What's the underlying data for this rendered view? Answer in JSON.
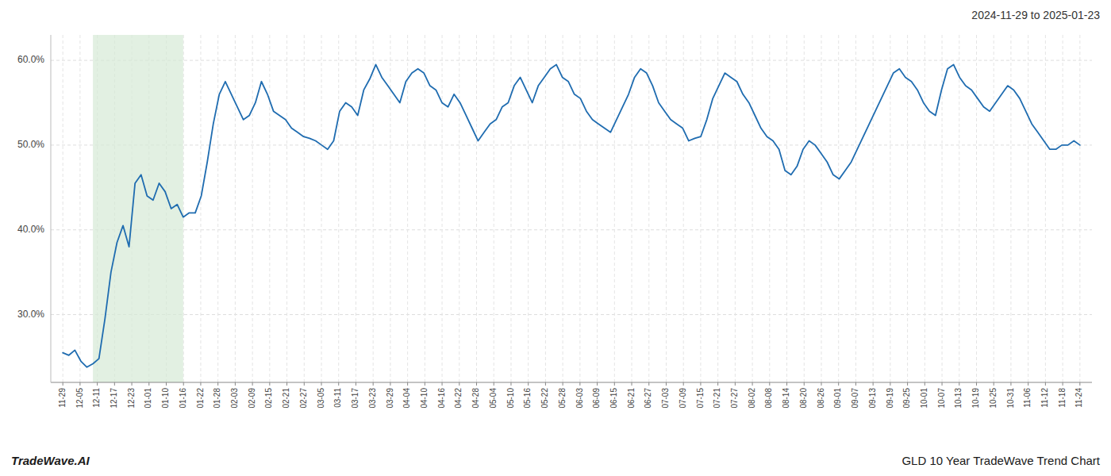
{
  "chart_data": {
    "type": "line",
    "title": "2024-11-29 to 2025-01-23",
    "annotations": [
      "TradeWave.AI",
      "GLD 10 Year TradeWave Trend Chart"
    ],
    "color": "#1f6cb0",
    "grid": true,
    "shaded_range": {
      "start": 5,
      "end": 20,
      "color": "#d6ead6"
    },
    "xlim": [
      -2,
      171
    ],
    "xticks": [
      {
        "value": 0,
        "label": "11-29"
      },
      {
        "value": 2.864,
        "label": "12-05"
      },
      {
        "value": 5.729,
        "label": "12-11"
      },
      {
        "value": 8.593,
        "label": "12-17"
      },
      {
        "value": 11.458,
        "label": "12-23"
      },
      {
        "value": 14.322,
        "label": "01-01"
      },
      {
        "value": 17.186,
        "label": "01-10"
      },
      {
        "value": 20.051,
        "label": "01-16"
      },
      {
        "value": 22.915,
        "label": "01-22"
      },
      {
        "value": 25.78,
        "label": "01-28"
      },
      {
        "value": 28.644,
        "label": "02-03"
      },
      {
        "value": 31.508,
        "label": "02-09"
      },
      {
        "value": 34.373,
        "label": "02-15"
      },
      {
        "value": 37.237,
        "label": "02-21"
      },
      {
        "value": 40.102,
        "label": "02-27"
      },
      {
        "value": 42.966,
        "label": "03-05"
      },
      {
        "value": 45.831,
        "label": "03-11"
      },
      {
        "value": 48.695,
        "label": "03-17"
      },
      {
        "value": 51.559,
        "label": "03-23"
      },
      {
        "value": 54.424,
        "label": "03-29"
      },
      {
        "value": 57.288,
        "label": "04-04"
      },
      {
        "value": 60.153,
        "label": "04-10"
      },
      {
        "value": 63.017,
        "label": "04-16"
      },
      {
        "value": 65.881,
        "label": "04-22"
      },
      {
        "value": 68.746,
        "label": "04-28"
      },
      {
        "value": 71.61,
        "label": "05-04"
      },
      {
        "value": 74.475,
        "label": "05-10"
      },
      {
        "value": 77.339,
        "label": "05-16"
      },
      {
        "value": 80.203,
        "label": "05-22"
      },
      {
        "value": 83.068,
        "label": "05-28"
      },
      {
        "value": 85.932,
        "label": "06-03"
      },
      {
        "value": 88.797,
        "label": "06-09"
      },
      {
        "value": 91.661,
        "label": "06-15"
      },
      {
        "value": 94.525,
        "label": "06-21"
      },
      {
        "value": 97.39,
        "label": "06-27"
      },
      {
        "value": 100.254,
        "label": "07-03"
      },
      {
        "value": 103.119,
        "label": "07-09"
      },
      {
        "value": 105.983,
        "label": "07-15"
      },
      {
        "value": 108.847,
        "label": "07-21"
      },
      {
        "value": 111.712,
        "label": "07-27"
      },
      {
        "value": 114.576,
        "label": "08-02"
      },
      {
        "value": 117.441,
        "label": "08-08"
      },
      {
        "value": 120.305,
        "label": "08-14"
      },
      {
        "value": 123.169,
        "label": "08-20"
      },
      {
        "value": 126.034,
        "label": "08-26"
      },
      {
        "value": 128.898,
        "label": "09-01"
      },
      {
        "value": 131.763,
        "label": "09-07"
      },
      {
        "value": 134.627,
        "label": "09-13"
      },
      {
        "value": 137.492,
        "label": "09-19"
      },
      {
        "value": 140.356,
        "label": "09-25"
      },
      {
        "value": 143.22,
        "label": "10-01"
      },
      {
        "value": 146.085,
        "label": "10-07"
      },
      {
        "value": 148.949,
        "label": "10-13"
      },
      {
        "value": 151.814,
        "label": "10-19"
      },
      {
        "value": 154.678,
        "label": "10-25"
      },
      {
        "value": 157.542,
        "label": "10-31"
      },
      {
        "value": 160.407,
        "label": "11-06"
      },
      {
        "value": 163.271,
        "label": "11-12"
      },
      {
        "value": 166.136,
        "label": "11-18"
      },
      {
        "value": 169,
        "label": "11-24"
      }
    ],
    "ylim": [
      22.0,
      63.0
    ],
    "yticks": [
      {
        "value": 30.0,
        "label": "30.0%"
      },
      {
        "value": 40.0,
        "label": "40.0%"
      },
      {
        "value": 50.0,
        "label": "50.0%"
      },
      {
        "value": 60.0,
        "label": "60.0%"
      }
    ],
    "x": [
      0,
      1,
      2,
      3,
      4,
      5,
      6,
      7,
      8,
      9,
      10,
      11,
      12,
      13,
      14,
      15,
      16,
      17,
      18,
      19,
      20,
      21,
      22,
      23,
      24,
      25,
      26,
      27,
      28,
      29,
      30,
      31,
      32,
      33,
      34,
      35,
      36,
      37,
      38,
      39,
      40,
      41,
      42,
      43,
      44,
      45,
      46,
      47,
      48,
      49,
      50,
      51,
      52,
      53,
      54,
      55,
      56,
      57,
      58,
      59,
      60,
      61,
      62,
      63,
      64,
      65,
      66,
      67,
      68,
      69,
      70,
      71,
      72,
      73,
      74,
      75,
      76,
      77,
      78,
      79,
      80,
      81,
      82,
      83,
      84,
      85,
      86,
      87,
      88,
      89,
      90,
      91,
      92,
      93,
      94,
      95,
      96,
      97,
      98,
      99,
      100,
      101,
      102,
      103,
      104,
      105,
      106,
      107,
      108,
      109,
      110,
      111,
      112,
      113,
      114,
      115,
      116,
      117,
      118,
      119,
      120,
      121,
      122,
      123,
      124,
      125,
      126,
      127,
      128,
      129,
      130,
      131,
      132,
      133,
      134,
      135,
      136,
      137,
      138,
      139,
      140,
      141,
      142,
      143,
      144,
      145,
      146,
      147,
      148,
      149,
      150,
      151,
      152,
      153,
      154,
      155,
      156,
      157,
      158,
      159,
      160,
      161,
      162,
      163,
      164,
      165,
      166,
      167,
      168,
      169
    ],
    "values": [
      25.5,
      25.2,
      25.8,
      24.5,
      23.8,
      24.2,
      24.8,
      29.5,
      35.0,
      38.5,
      40.5,
      38.0,
      45.5,
      46.5,
      44.0,
      43.5,
      45.5,
      44.5,
      42.5,
      43.0,
      41.5,
      42.0,
      42.0,
      44.0,
      48.0,
      52.5,
      56.0,
      57.5,
      56.0,
      54.5,
      53.0,
      53.5,
      55.0,
      57.5,
      56.0,
      54.0,
      53.5,
      53.0,
      52.0,
      51.5,
      51.0,
      50.8,
      50.5,
      50.0,
      49.5,
      50.5,
      54.0,
      55.0,
      54.5,
      53.5,
      56.5,
      57.8,
      59.5,
      58.0,
      57.0,
      56.0,
      55.0,
      57.5,
      58.5,
      59.0,
      58.5,
      57.0,
      56.5,
      55.0,
      54.5,
      56.0,
      55.0,
      53.5,
      52.0,
      50.5,
      51.5,
      52.5,
      53.0,
      54.5,
      55.0,
      57.0,
      58.0,
      56.5,
      55.0,
      57.0,
      58.0,
      59.0,
      59.5,
      58.0,
      57.5,
      56.0,
      55.5,
      54.0,
      53.0,
      52.5,
      52.0,
      51.5,
      53.0,
      54.5,
      56.0,
      58.0,
      59.0,
      58.5,
      57.0,
      55.0,
      54.0,
      53.0,
      52.5,
      52.0,
      50.5,
      50.8,
      51.0,
      53.0,
      55.5,
      57.0,
      58.5,
      58.0,
      57.5,
      56.0,
      55.0,
      53.5,
      52.0,
      51.0,
      50.5,
      49.5,
      47.0,
      46.5,
      47.5,
      49.5,
      50.5,
      50.0,
      49.0,
      48.0,
      46.5,
      46.0,
      47.0,
      48.0,
      49.5,
      51.0,
      52.5,
      54.0,
      55.5,
      57.0,
      58.5,
      59.0,
      58.0,
      57.5,
      56.5,
      55.0,
      54.0,
      53.5,
      56.5,
      59.0,
      59.5,
      58.0,
      57.0,
      56.5,
      55.5,
      54.5,
      54.0,
      55.0,
      56.0,
      57.0,
      56.5,
      55.5,
      54.0,
      52.5,
      51.5,
      50.5,
      49.5,
      49.5,
      50.0,
      50.0,
      50.5,
      50.0
    ]
  }
}
